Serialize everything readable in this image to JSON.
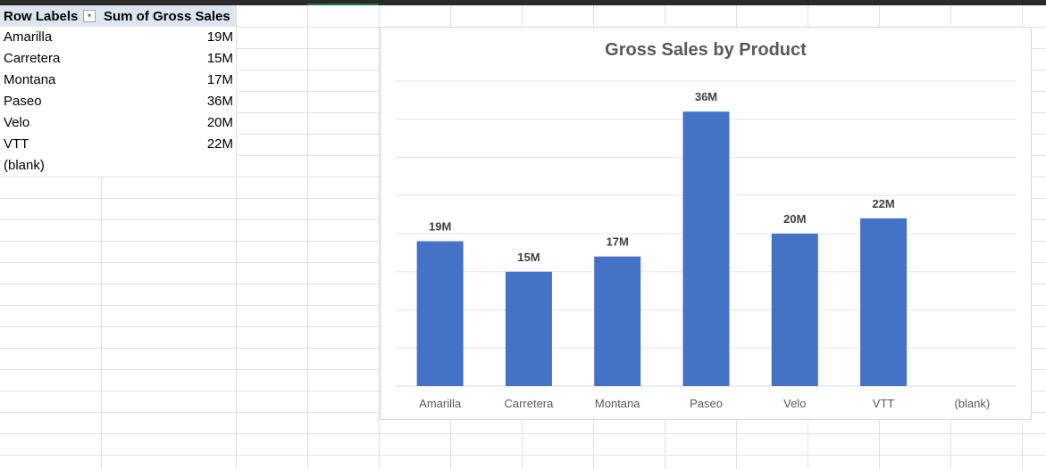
{
  "pivot": {
    "header_row_labels": "Row Labels",
    "header_sum": "Sum of Gross Sales",
    "filter_glyph": "▾",
    "rows": [
      {
        "label": "Amarilla",
        "value": "19M"
      },
      {
        "label": "Carretera",
        "value": "15M"
      },
      {
        "label": "Montana",
        "value": "17M"
      },
      {
        "label": "Paseo",
        "value": "36M"
      },
      {
        "label": "Velo",
        "value": "20M"
      },
      {
        "label": "VTT",
        "value": "22M"
      },
      {
        "label": "(blank)",
        "value": ""
      }
    ]
  },
  "chart_data": {
    "type": "bar",
    "title": "Gross Sales by Product",
    "categories": [
      "Amarilla",
      "Carretera",
      "Montana",
      "Paseo",
      "Velo",
      "VTT",
      "(blank)"
    ],
    "values": [
      19,
      15,
      17,
      36,
      20,
      22,
      null
    ],
    "data_labels": [
      "19M",
      "15M",
      "17M",
      "36M",
      "20M",
      "22M",
      ""
    ],
    "ylim": [
      0,
      40
    ],
    "grid": true,
    "bar_color": "#4472c4"
  }
}
